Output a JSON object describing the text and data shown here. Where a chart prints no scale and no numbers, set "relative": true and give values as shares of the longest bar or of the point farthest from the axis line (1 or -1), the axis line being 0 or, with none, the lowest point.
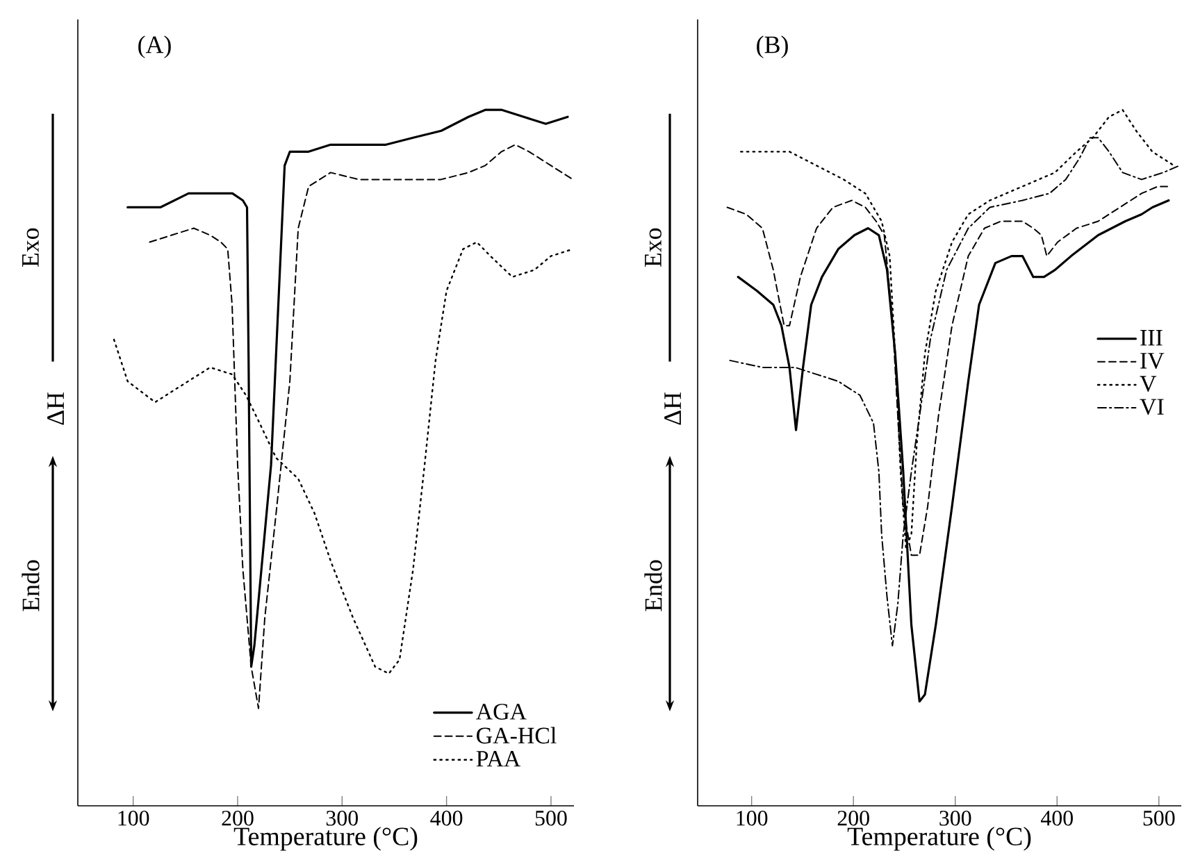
{
  "chart_data": [
    {
      "type": "line",
      "title": "(A)",
      "xlabel": "Temperature (°C)",
      "annotations": [
        "Exo",
        "ΔH",
        "Endo"
      ],
      "relative": true,
      "xlim": [
        47,
        522
      ],
      "xticks": [
        100,
        200,
        300,
        400,
        500
      ],
      "legend": "bottom right",
      "series": [
        {
          "name": "AGA",
          "color": "#000000",
          "line_style": "solid",
          "x": [
            94.7,
            126,
            153,
            179,
            195,
            205,
            209,
            210.5,
            213,
            216,
            232,
            245,
            250,
            268,
            289,
            342,
            368,
            395,
            421,
            437,
            453,
            474,
            495,
            516
          ],
          "values": [
            0.86,
            0.86,
            0.88,
            0.88,
            0.88,
            0.87,
            0.86,
            0.64,
            0.2,
            0.23,
            0.49,
            0.92,
            0.94,
            0.94,
            0.95,
            0.95,
            0.96,
            0.97,
            0.99,
            1.0,
            1.0,
            0.99,
            0.98,
            0.99
          ]
        },
        {
          "name": "GA-HCl",
          "color": "#000000",
          "line_style": "dashed",
          "x": [
            115.8,
            136.8,
            158,
            173.7,
            184,
            190.5,
            194.7,
            200,
            205,
            213,
            220,
            226,
            236.8,
            250,
            258,
            268,
            289,
            316,
            352.6,
            394.7,
            421,
            437,
            452.6,
            465.8,
            479,
            500,
            521
          ],
          "values": [
            0.81,
            0.82,
            0.83,
            0.82,
            0.81,
            0.8,
            0.72,
            0.49,
            0.34,
            0.2,
            0.14,
            0.27,
            0.42,
            0.61,
            0.83,
            0.89,
            0.91,
            0.9,
            0.9,
            0.9,
            0.91,
            0.92,
            0.94,
            0.95,
            0.94,
            0.92,
            0.9
          ]
        },
        {
          "name": "PAA",
          "color": "#000000",
          "line_style": "dotted",
          "x": [
            81.6,
            94.7,
            121,
            142,
            173.7,
            194.7,
            208,
            221,
            236.8,
            258,
            273.7,
            289.5,
            310.5,
            331.6,
            344.7,
            355,
            368,
            379,
            389.5,
            400,
            415.8,
            429,
            442,
            463,
            484,
            500,
            521
          ],
          "values": [
            0.67,
            0.61,
            0.58,
            0.6,
            0.63,
            0.62,
            0.59,
            0.55,
            0.5,
            0.47,
            0.42,
            0.35,
            0.27,
            0.2,
            0.19,
            0.21,
            0.34,
            0.49,
            0.64,
            0.74,
            0.8,
            0.81,
            0.79,
            0.76,
            0.77,
            0.79,
            0.8
          ]
        }
      ]
    },
    {
      "type": "line",
      "title": "(B)",
      "xlabel": "Temperature (°C)",
      "annotations": [
        "Exo",
        "ΔH",
        "Endo"
      ],
      "relative": true,
      "xlim": [
        47,
        522
      ],
      "xticks": [
        100,
        200,
        300,
        400,
        500
      ],
      "legend": "right",
      "series": [
        {
          "name": "III",
          "color": "#000000",
          "line_style": "solid",
          "x": [
            86.7,
            105.3,
            121.3,
            129.3,
            137.2,
            143.6,
            150.5,
            158.5,
            169.1,
            185.1,
            201,
            214.4,
            225,
            233,
            241,
            248.9,
            256.9,
            264.9,
            270.2,
            280.9,
            296.8,
            312.8,
            323.4,
            339.4,
            355.3,
            366,
            376.6,
            387.2,
            397.9,
            413.8,
            440.4,
            467,
            483,
            493.6,
            509.6
          ],
          "values": [
            0.76,
            0.74,
            0.72,
            0.69,
            0.63,
            0.54,
            0.63,
            0.72,
            0.76,
            0.8,
            0.82,
            0.83,
            0.82,
            0.77,
            0.65,
            0.48,
            0.26,
            0.15,
            0.16,
            0.26,
            0.43,
            0.61,
            0.72,
            0.78,
            0.79,
            0.79,
            0.76,
            0.76,
            0.77,
            0.79,
            0.82,
            0.84,
            0.85,
            0.86,
            0.87
          ]
        },
        {
          "name": "IV",
          "color": "#000000",
          "line_style": "dashed",
          "x": [
            76.1,
            94.7,
            110.6,
            121.3,
            131.9,
            137.2,
            147.9,
            163.8,
            179.8,
            198.4,
            211.7,
            222.3,
            230.3,
            238.3,
            243.6,
            248.9,
            256.9,
            264.9,
            272.9,
            283.5,
            296.8,
            312.8,
            328.7,
            344.7,
            366,
            376.6,
            384.6,
            389.9,
            400.5,
            419.1,
            440.4,
            461.7,
            483,
            498.9,
            509.6
          ],
          "values": [
            0.86,
            0.85,
            0.83,
            0.77,
            0.69,
            0.69,
            0.76,
            0.83,
            0.86,
            0.87,
            0.86,
            0.84,
            0.82,
            0.7,
            0.56,
            0.43,
            0.36,
            0.36,
            0.43,
            0.56,
            0.69,
            0.79,
            0.83,
            0.84,
            0.84,
            0.83,
            0.82,
            0.79,
            0.81,
            0.83,
            0.84,
            0.86,
            0.88,
            0.89,
            0.89
          ]
        },
        {
          "name": "V",
          "color": "#000000",
          "line_style": "dotted",
          "x": [
            89.4,
            110.6,
            137.2,
            163.8,
            190.4,
            211.7,
            227.7,
            235.6,
            241,
            246.3,
            251.6,
            256.9,
            262.2,
            270.2,
            280.9,
            296.8,
            312.8,
            334,
            366,
            397.9,
            419.1,
            435.1,
            451,
            464.4,
            477.7,
            493.6,
            514.9
          ],
          "values": [
            0.94,
            0.94,
            0.94,
            0.92,
            0.9,
            0.88,
            0.84,
            0.79,
            0.65,
            0.48,
            0.37,
            0.39,
            0.52,
            0.65,
            0.74,
            0.81,
            0.85,
            0.87,
            0.89,
            0.91,
            0.94,
            0.96,
            0.99,
            1.0,
            0.97,
            0.94,
            0.92
          ]
        },
        {
          "name": "VI",
          "color": "#000000",
          "line_style": "dashdot",
          "x": [
            78.7,
            110.6,
            142.6,
            163.8,
            185.1,
            206.4,
            219.7,
            225,
            227.7,
            233,
            238.3,
            243.6,
            248.9,
            256.9,
            264.9,
            275.5,
            291.5,
            312.8,
            334,
            366,
            392.6,
            408.5,
            421.8,
            432.4,
            440.4,
            451,
            464.4,
            483,
            504.3,
            520.2
          ],
          "values": [
            0.64,
            0.63,
            0.63,
            0.62,
            0.61,
            0.59,
            0.55,
            0.48,
            0.39,
            0.3,
            0.23,
            0.29,
            0.39,
            0.48,
            0.56,
            0.67,
            0.77,
            0.83,
            0.86,
            0.87,
            0.88,
            0.9,
            0.93,
            0.96,
            0.96,
            0.94,
            0.91,
            0.9,
            0.91,
            0.92
          ]
        }
      ]
    }
  ]
}
